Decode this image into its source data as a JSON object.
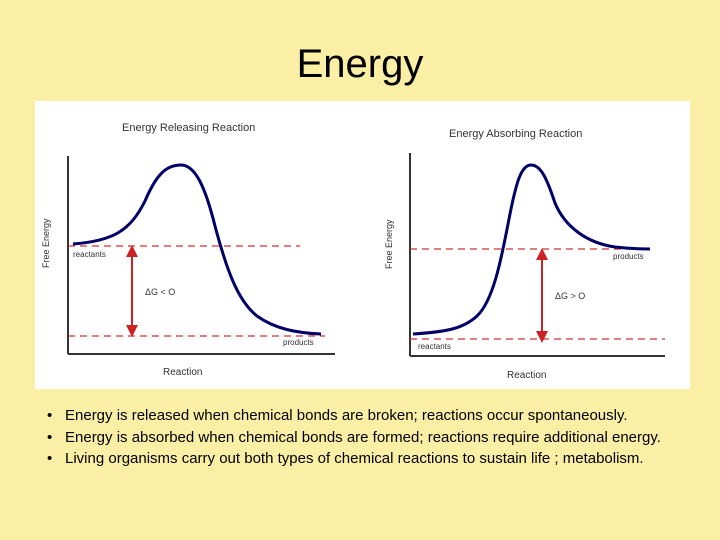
{
  "slide": {
    "title": "Energy"
  },
  "diagram": {
    "left_panel": {
      "title": "Energy Releasing Reaction",
      "y_axis_label": "Free Energy",
      "x_axis_label": "Reaction",
      "reactants_label": "reactants",
      "products_label": "products",
      "delta_label": "ΔG < O"
    },
    "right_panel": {
      "title": "Energy Absorbing Reaction",
      "y_axis_label": "Free Energy",
      "x_axis_label": "Reaction",
      "reactants_label": "reactants",
      "products_label": "products",
      "delta_label": "ΔG > O"
    },
    "colors": {
      "curve": "#000066",
      "axis": "#333333",
      "dashed_line": "#cc3333",
      "delta_arrow": "#cc2222",
      "text": "#333333"
    }
  },
  "bullets": [
    "Energy is released when chemical bonds are broken; reactions occur spontaneously.",
    "Energy is absorbed when chemical bonds are formed; reactions require additional energy.",
    "Living organisms carry out both types of chemical reactions to sustain life ; metabolism."
  ]
}
